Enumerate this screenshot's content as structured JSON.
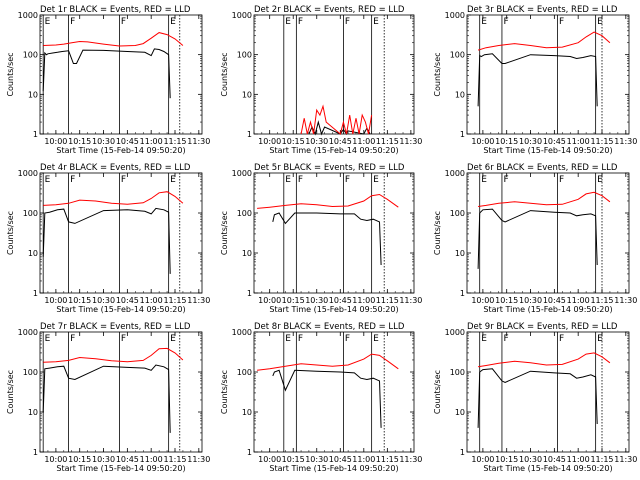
{
  "chart_data": [
    {
      "type": "line",
      "title": "Det 1r BLACK = Events, RED = LLD",
      "xlabel": "Start Time (15-Feb-14 09:50:20)",
      "ylabel": "Counts/sec",
      "yscale": "log",
      "ylim": [
        1,
        1000
      ],
      "x_ticks": [
        "10:00",
        "10:15",
        "10:30",
        "10:45",
        "11:00",
        "11:15",
        "11:30"
      ],
      "y_ticks": [
        "1",
        "10",
        "100",
        "1000"
      ],
      "markers": [
        "E",
        "F",
        "F",
        "E"
      ],
      "series": [
        {
          "color": "#000000",
          "x": [
            "09:52",
            "09:53",
            "09:54",
            "09:55",
            "09:58",
            "10:01",
            "10:04",
            "10:08",
            "10:11",
            "10:13",
            "10:17",
            "10:30",
            "10:45",
            "10:56",
            "11:00",
            "11:02",
            "11:05",
            "11:08",
            "11:11",
            "11:12"
          ],
          "values": [
            12,
            110,
            100,
            105,
            110,
            115,
            120,
            125,
            60,
            60,
            130,
            128,
            120,
            115,
            95,
            140,
            135,
            120,
            100,
            8
          ]
        },
        {
          "color": "#ff0000",
          "x": [
            "09:52",
            "10:00",
            "10:05",
            "10:10",
            "10:15",
            "10:20",
            "10:30",
            "10:40",
            "10:50",
            "10:55",
            "11:00",
            "11:05",
            "11:10",
            "11:15",
            "11:20"
          ],
          "values": [
            170,
            175,
            185,
            200,
            215,
            210,
            185,
            165,
            170,
            190,
            260,
            360,
            320,
            250,
            170
          ]
        }
      ]
    },
    {
      "type": "line",
      "title": "Det 2r BLACK = Events, RED = LLD",
      "xlabel": "Start Time (15-Feb-14 09:50:20)",
      "ylabel": "Counts/sec",
      "yscale": "log",
      "ylim": [
        1,
        1000
      ],
      "x_ticks": [
        "10:00",
        "10:15",
        "10:30",
        "10:45",
        "11:00",
        "11:15",
        "11:30"
      ],
      "y_ticks": [
        "1",
        "10",
        "100",
        "1000"
      ],
      "markers": [
        "E",
        "F",
        "F",
        "E"
      ],
      "series": [
        {
          "color": "#000000",
          "x": [
            "10:25",
            "10:27",
            "10:29",
            "10:31",
            "10:33",
            "10:35",
            "10:45",
            "10:47",
            "10:49",
            "10:50",
            "11:00",
            "11:02",
            "11:04"
          ],
          "values": [
            1,
            1.5,
            1,
            2,
            1,
            1.5,
            1,
            1.3,
            1,
            1.2,
            1,
            1.4,
            1
          ]
        },
        {
          "color": "#ff0000",
          "x": [
            "10:20",
            "10:22",
            "10:24",
            "10:26",
            "10:28",
            "10:30",
            "10:32",
            "10:34",
            "10:36",
            "10:45",
            "10:47",
            "10:49",
            "10:51",
            "10:53",
            "10:55",
            "10:57",
            "10:59",
            "11:01",
            "11:03",
            "11:05"
          ],
          "values": [
            1,
            2.5,
            1,
            2,
            1,
            4,
            3,
            5,
            2,
            1,
            2,
            1,
            3,
            1,
            2.5,
            1,
            3,
            2,
            1,
            3
          ]
        }
      ]
    },
    {
      "type": "line",
      "title": "Det 3r BLACK = Events, RED = LLD",
      "xlabel": "Start Time (15-Feb-14 09:50:20)",
      "ylabel": "Counts/sec",
      "yscale": "log",
      "ylim": [
        1,
        1000
      ],
      "x_ticks": [
        "10:00",
        "10:15",
        "10:30",
        "10:45",
        "11:00",
        "11:15",
        "11:30"
      ],
      "y_ticks": [
        "1",
        "10",
        "100",
        "1000"
      ],
      "markers": [
        "E",
        "F",
        "F",
        "E"
      ],
      "series": [
        {
          "color": "#000000",
          "x": [
            "09:57",
            "09:58",
            "09:59",
            "10:01",
            "10:06",
            "10:12",
            "10:14",
            "10:30",
            "10:45",
            "10:55",
            "10:59",
            "11:03",
            "11:08",
            "11:11",
            "11:12"
          ],
          "values": [
            5,
            95,
            90,
            100,
            105,
            60,
            60,
            100,
            95,
            90,
            80,
            85,
            95,
            90,
            5
          ]
        },
        {
          "color": "#ff0000",
          "x": [
            "09:57",
            "10:02",
            "10:10",
            "10:20",
            "10:30",
            "10:40",
            "10:50",
            "11:00",
            "11:05",
            "11:10",
            "11:15",
            "11:20"
          ],
          "values": [
            130,
            150,
            170,
            190,
            170,
            150,
            155,
            200,
            280,
            370,
            300,
            200
          ]
        }
      ]
    },
    {
      "type": "line",
      "title": "Det 4r BLACK = Events, RED = LLD",
      "xlabel": "Start Time (15-Feb-14 09:50:20)",
      "ylabel": "Counts/sec",
      "yscale": "log",
      "ylim": [
        1,
        1000
      ],
      "x_ticks": [
        "10:00",
        "10:15",
        "10:30",
        "10:45",
        "11:00",
        "11:15",
        "11:30"
      ],
      "y_ticks": [
        "1",
        "10",
        "100",
        "1000"
      ],
      "markers": [
        "E",
        "F",
        "F",
        "E"
      ],
      "series": [
        {
          "color": "#000000",
          "x": [
            "09:52",
            "09:53",
            "09:56",
            "10:01",
            "10:05",
            "10:08",
            "10:12",
            "10:30",
            "10:45",
            "10:56",
            "11:00",
            "11:03",
            "11:08",
            "11:11",
            "11:12"
          ],
          "values": [
            8,
            100,
            105,
            120,
            125,
            60,
            55,
            115,
            120,
            110,
            95,
            130,
            120,
            105,
            3
          ]
        },
        {
          "color": "#ff0000",
          "x": [
            "09:52",
            "10:00",
            "10:08",
            "10:15",
            "10:25",
            "10:35",
            "10:45",
            "10:55",
            "11:00",
            "11:05",
            "11:10",
            "11:15",
            "11:20"
          ],
          "values": [
            155,
            160,
            175,
            210,
            200,
            175,
            165,
            180,
            230,
            320,
            340,
            260,
            175
          ]
        }
      ]
    },
    {
      "type": "line",
      "title": "Det 5r BLACK = Events, RED = LLD",
      "xlabel": "Start Time (15-Feb-14 09:50:20)",
      "ylabel": "Counts/sec",
      "yscale": "log",
      "ylim": [
        1,
        1000
      ],
      "x_ticks": [
        "10:00",
        "10:15",
        "10:30",
        "10:45",
        "11:00",
        "11:15",
        "11:30"
      ],
      "y_ticks": [
        "1",
        "10",
        "100",
        "1000"
      ],
      "markers": [
        "E",
        "F",
        "F",
        "E"
      ],
      "series": [
        {
          "color": "#000000",
          "x": [
            "10:02",
            "10:03",
            "10:06",
            "10:10",
            "10:16",
            "10:30",
            "10:45",
            "10:54",
            "10:58",
            "11:02",
            "11:06",
            "11:10",
            "11:11"
          ],
          "values": [
            60,
            90,
            100,
            55,
            100,
            100,
            95,
            95,
            70,
            65,
            70,
            60,
            5
          ]
        },
        {
          "color": "#ff0000",
          "x": [
            "09:52",
            "10:00",
            "10:10",
            "10:20",
            "10:30",
            "10:40",
            "10:50",
            "11:00",
            "11:05",
            "11:10",
            "11:15",
            "11:22"
          ],
          "values": [
            130,
            140,
            155,
            170,
            160,
            145,
            150,
            200,
            270,
            290,
            220,
            140
          ]
        }
      ]
    },
    {
      "type": "line",
      "title": "Det 6r BLACK = Events, RED = LLD",
      "xlabel": "Start Time (15-Feb-14 09:50:20)",
      "ylabel": "Counts/sec",
      "yscale": "log",
      "ylim": [
        1,
        1000
      ],
      "x_ticks": [
        "10:00",
        "10:15",
        "10:30",
        "10:45",
        "11:00",
        "11:15",
        "11:30"
      ],
      "y_ticks": [
        "1",
        "10",
        "100",
        "1000"
      ],
      "markers": [
        "E",
        "F",
        "F",
        "E"
      ],
      "series": [
        {
          "color": "#000000",
          "x": [
            "09:57",
            "09:58",
            "10:00",
            "10:06",
            "10:12",
            "10:14",
            "10:30",
            "10:45",
            "10:55",
            "10:59",
            "11:03",
            "11:08",
            "11:11",
            "11:12"
          ],
          "values": [
            4,
            100,
            120,
            125,
            65,
            60,
            115,
            105,
            100,
            85,
            90,
            95,
            85,
            5
          ]
        },
        {
          "color": "#ff0000",
          "x": [
            "09:57",
            "10:02",
            "10:10",
            "10:20",
            "10:30",
            "10:40",
            "10:50",
            "11:00",
            "11:05",
            "11:10",
            "11:15",
            "11:20"
          ],
          "values": [
            145,
            155,
            175,
            190,
            175,
            160,
            165,
            220,
            300,
            330,
            270,
            190
          ]
        }
      ]
    },
    {
      "type": "line",
      "title": "Det 7r BLACK = Events, RED = LLD",
      "xlabel": "Start Time (15-Feb-14 09:50:20)",
      "ylabel": "Counts/sec",
      "yscale": "log",
      "ylim": [
        1,
        1000
      ],
      "x_ticks": [
        "10:00",
        "10:15",
        "10:30",
        "10:45",
        "11:00",
        "11:15",
        "11:30"
      ],
      "y_ticks": [
        "1",
        "10",
        "100",
        "1000"
      ],
      "markers": [
        "E",
        "F",
        "F",
        "E"
      ],
      "series": [
        {
          "color": "#000000",
          "x": [
            "09:52",
            "09:53",
            "09:56",
            "10:01",
            "10:05",
            "10:08",
            "10:12",
            "10:30",
            "10:45",
            "10:56",
            "11:00",
            "11:03",
            "11:08",
            "11:11",
            "11:12"
          ],
          "values": [
            10,
            120,
            125,
            135,
            140,
            70,
            65,
            140,
            130,
            125,
            110,
            150,
            135,
            115,
            3
          ]
        },
        {
          "color": "#ff0000",
          "x": [
            "09:52",
            "10:00",
            "10:08",
            "10:15",
            "10:25",
            "10:35",
            "10:45",
            "10:55",
            "11:00",
            "11:05",
            "11:10",
            "11:15",
            "11:20"
          ],
          "values": [
            175,
            180,
            195,
            230,
            215,
            190,
            180,
            195,
            260,
            380,
            390,
            300,
            200
          ]
        }
      ]
    },
    {
      "type": "line",
      "title": "Det 8r BLACK = Events, RED = LLD",
      "xlabel": "Start Time (15-Feb-14 09:50:20)",
      "ylabel": "Counts/sec",
      "yscale": "log",
      "ylim": [
        1,
        1000
      ],
      "x_ticks": [
        "10:00",
        "10:15",
        "10:30",
        "10:45",
        "11:00",
        "11:15",
        "11:30"
      ],
      "y_ticks": [
        "1",
        "10",
        "100",
        "1000"
      ],
      "markers": [
        "E",
        "F",
        "F",
        "E"
      ],
      "series": [
        {
          "color": "#000000",
          "x": [
            "10:02",
            "10:03",
            "10:06",
            "10:10",
            "10:16",
            "10:30",
            "10:45",
            "10:54",
            "10:58",
            "11:02",
            "11:06",
            "11:10",
            "11:11"
          ],
          "values": [
            80,
            100,
            110,
            35,
            110,
            105,
            100,
            95,
            70,
            65,
            70,
            60,
            4
          ]
        },
        {
          "color": "#ff0000",
          "x": [
            "09:52",
            "10:00",
            "10:10",
            "10:20",
            "10:30",
            "10:40",
            "10:50",
            "11:00",
            "11:05",
            "11:10",
            "11:15",
            "11:22"
          ],
          "values": [
            110,
            120,
            140,
            160,
            150,
            140,
            150,
            210,
            280,
            260,
            190,
            120
          ]
        }
      ]
    },
    {
      "type": "line",
      "title": "Det 9r BLACK = Events, RED = LLD",
      "xlabel": "Start Time (15-Feb-14 09:50:20)",
      "ylabel": "Counts/sec",
      "yscale": "log",
      "ylim": [
        1,
        1000
      ],
      "x_ticks": [
        "10:00",
        "10:15",
        "10:30",
        "10:45",
        "11:00",
        "11:15",
        "11:30"
      ],
      "y_ticks": [
        "1",
        "10",
        "100",
        "1000"
      ],
      "markers": [
        "E",
        "F",
        "F",
        "E"
      ],
      "series": [
        {
          "color": "#000000",
          "x": [
            "09:57",
            "09:58",
            "10:00",
            "10:06",
            "10:12",
            "10:14",
            "10:30",
            "10:45",
            "10:55",
            "10:59",
            "11:03",
            "11:08",
            "11:11",
            "11:12"
          ],
          "values": [
            4,
            100,
            115,
            120,
            60,
            55,
            105,
            95,
            90,
            70,
            75,
            85,
            75,
            5
          ]
        },
        {
          "color": "#ff0000",
          "x": [
            "09:57",
            "10:02",
            "10:10",
            "10:20",
            "10:30",
            "10:40",
            "10:50",
            "11:00",
            "11:05",
            "11:10",
            "11:15",
            "11:20"
          ],
          "values": [
            135,
            145,
            165,
            185,
            170,
            150,
            155,
            210,
            280,
            300,
            240,
            170
          ]
        }
      ]
    }
  ]
}
